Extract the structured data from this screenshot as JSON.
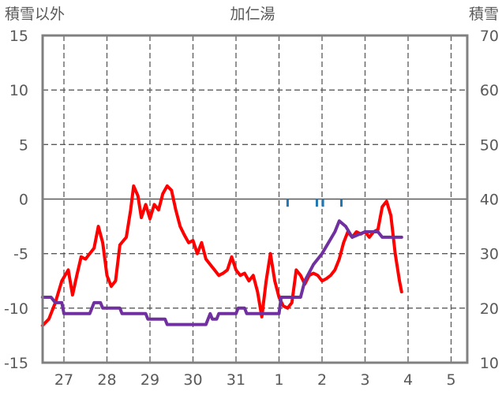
{
  "chart_data": {
    "type": "line",
    "title": "加仁湯",
    "left_axis_label": "積雪以外",
    "right_axis_label": "積雪",
    "left_ylim": [
      -15,
      15
    ],
    "right_ylim": [
      10,
      70
    ],
    "left_ticks": [
      "15",
      "10",
      "5",
      "0",
      "-5",
      "-10",
      "-15"
    ],
    "right_ticks": [
      "70",
      "60",
      "50",
      "40",
      "30",
      "20",
      "10"
    ],
    "x_ticks": [
      "27",
      "28",
      "29",
      "30",
      "31",
      "1",
      "2",
      "3",
      "4",
      "5"
    ],
    "grid": true,
    "colors": {
      "temperature": "#ff0000",
      "snow_depth": "#7030a0",
      "precipitation": "#1f77b4",
      "grid": "#595959",
      "frame": "#808080"
    },
    "series": [
      {
        "axis": "left",
        "color": "#ff0000",
        "points": [
          [
            -0.5,
            -11.6
          ],
          [
            -0.35,
            -11
          ],
          [
            -0.2,
            -9.5
          ],
          [
            -0.05,
            -7.5
          ],
          [
            0.1,
            -6.5
          ],
          [
            0.2,
            -8.8
          ],
          [
            0.3,
            -7
          ],
          [
            0.4,
            -5.3
          ],
          [
            0.5,
            -5.5
          ],
          [
            0.6,
            -5
          ],
          [
            0.7,
            -4.5
          ],
          [
            0.8,
            -2.5
          ],
          [
            0.9,
            -4
          ],
          [
            1.0,
            -7
          ],
          [
            1.1,
            -8
          ],
          [
            1.2,
            -7.5
          ],
          [
            1.3,
            -4.2
          ],
          [
            1.45,
            -3.5
          ],
          [
            1.55,
            -1
          ],
          [
            1.62,
            1.2
          ],
          [
            1.72,
            0.3
          ],
          [
            1.8,
            -1.7
          ],
          [
            1.9,
            -0.5
          ],
          [
            2.0,
            -1.8
          ],
          [
            2.1,
            -0.5
          ],
          [
            2.2,
            -1
          ],
          [
            2.3,
            0.5
          ],
          [
            2.4,
            1.2
          ],
          [
            2.5,
            0.8
          ],
          [
            2.6,
            -1
          ],
          [
            2.7,
            -2.5
          ],
          [
            2.8,
            -3.3
          ],
          [
            2.9,
            -4
          ],
          [
            3.0,
            -3.8
          ],
          [
            3.1,
            -5
          ],
          [
            3.2,
            -4
          ],
          [
            3.3,
            -5.5
          ],
          [
            3.4,
            -6
          ],
          [
            3.5,
            -6.5
          ],
          [
            3.6,
            -7
          ],
          [
            3.7,
            -6.8
          ],
          [
            3.8,
            -6.5
          ],
          [
            3.9,
            -5.3
          ],
          [
            4.0,
            -6.5
          ],
          [
            4.1,
            -7
          ],
          [
            4.2,
            -6.8
          ],
          [
            4.3,
            -7.5
          ],
          [
            4.4,
            -7
          ],
          [
            4.5,
            -8.5
          ],
          [
            4.6,
            -10.8
          ],
          [
            4.7,
            -7.5
          ],
          [
            4.8,
            -5
          ],
          [
            4.9,
            -7.5
          ],
          [
            5.0,
            -9
          ],
          [
            5.1,
            -9.8
          ],
          [
            5.2,
            -10
          ],
          [
            5.3,
            -9.5
          ],
          [
            5.4,
            -6.5
          ],
          [
            5.5,
            -7
          ],
          [
            5.6,
            -7.8
          ],
          [
            5.7,
            -7
          ],
          [
            5.8,
            -6.8
          ],
          [
            5.9,
            -7
          ],
          [
            6.0,
            -7.5
          ],
          [
            6.1,
            -7.3
          ],
          [
            6.2,
            -7
          ],
          [
            6.3,
            -6.5
          ],
          [
            6.4,
            -5.5
          ],
          [
            6.5,
            -4
          ],
          [
            6.6,
            -3
          ],
          [
            6.7,
            -3.5
          ],
          [
            6.8,
            -3
          ],
          [
            6.9,
            -3.2
          ],
          [
            7.0,
            -3
          ],
          [
            7.1,
            -3.5
          ],
          [
            7.2,
            -3
          ],
          [
            7.3,
            -2.8
          ],
          [
            7.4,
            -0.7
          ],
          [
            7.5,
            -0.2
          ],
          [
            7.6,
            -1.5
          ],
          [
            7.7,
            -5
          ],
          [
            7.8,
            -7.5
          ],
          [
            7.85,
            -8.5
          ]
        ]
      },
      {
        "axis": "right",
        "color": "#7030a0",
        "points": [
          [
            -0.5,
            22
          ],
          [
            -0.3,
            22
          ],
          [
            -0.2,
            21
          ],
          [
            -0.05,
            21
          ],
          [
            0.0,
            19
          ],
          [
            0.6,
            19
          ],
          [
            0.7,
            21
          ],
          [
            0.85,
            21
          ],
          [
            0.9,
            20
          ],
          [
            1.3,
            20
          ],
          [
            1.35,
            19
          ],
          [
            1.9,
            19
          ],
          [
            1.95,
            18
          ],
          [
            2.35,
            18
          ],
          [
            2.4,
            17
          ],
          [
            3.3,
            17
          ],
          [
            3.35,
            18
          ],
          [
            3.4,
            19
          ],
          [
            3.45,
            18
          ],
          [
            3.55,
            18
          ],
          [
            3.6,
            19
          ],
          [
            4.0,
            19
          ],
          [
            4.05,
            20
          ],
          [
            4.2,
            20
          ],
          [
            4.25,
            19
          ],
          [
            5.0,
            19
          ],
          [
            5.05,
            22
          ],
          [
            5.5,
            22
          ],
          [
            5.6,
            25
          ],
          [
            5.8,
            28
          ],
          [
            6.0,
            30
          ],
          [
            6.3,
            34
          ],
          [
            6.4,
            36
          ],
          [
            6.55,
            35
          ],
          [
            6.7,
            33
          ],
          [
            7.0,
            34
          ],
          [
            7.3,
            34
          ],
          [
            7.4,
            33
          ],
          [
            7.85,
            33
          ]
        ]
      },
      {
        "axis": "left",
        "color": "#1f77b4",
        "bars": [
          [
            5.2,
            -0.7
          ],
          [
            5.88,
            -0.7
          ],
          [
            6.02,
            -0.7
          ],
          [
            6.45,
            -0.7
          ]
        ]
      }
    ]
  }
}
